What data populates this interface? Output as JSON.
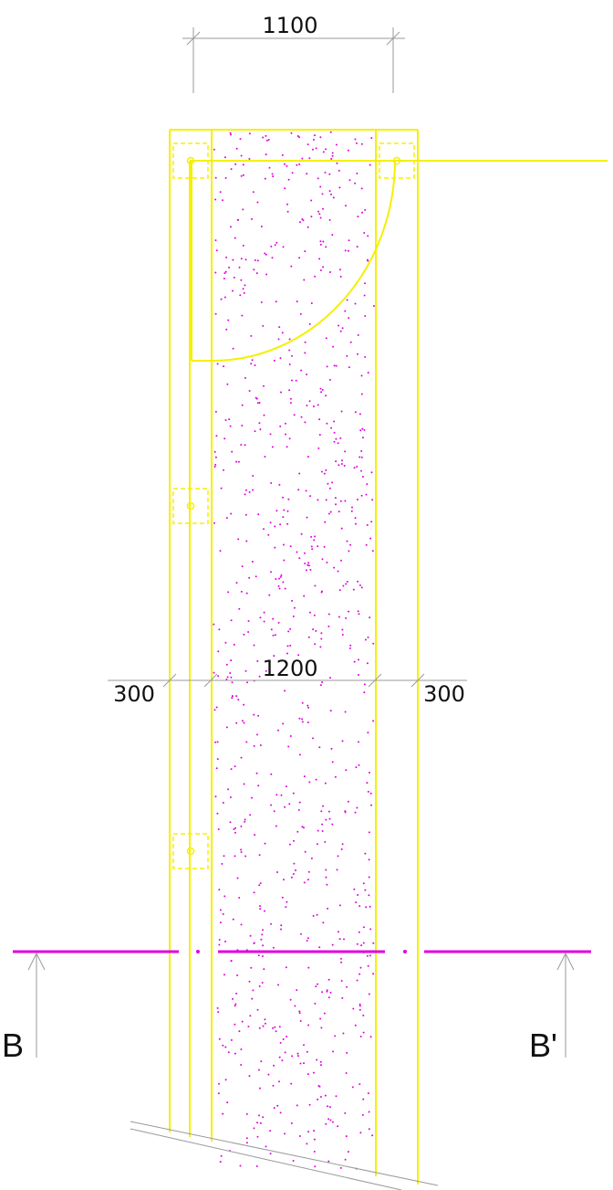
{
  "colors": {
    "background": "#ffffff",
    "outline": "#f5f000",
    "hatch": "#e000e0",
    "dimension": "#9a9a9a",
    "text": "#111111"
  },
  "dimensions": {
    "top": "1100",
    "middle": "1200",
    "left": "300",
    "right": "300"
  },
  "section": {
    "left_label": "B",
    "right_label": "B'"
  }
}
